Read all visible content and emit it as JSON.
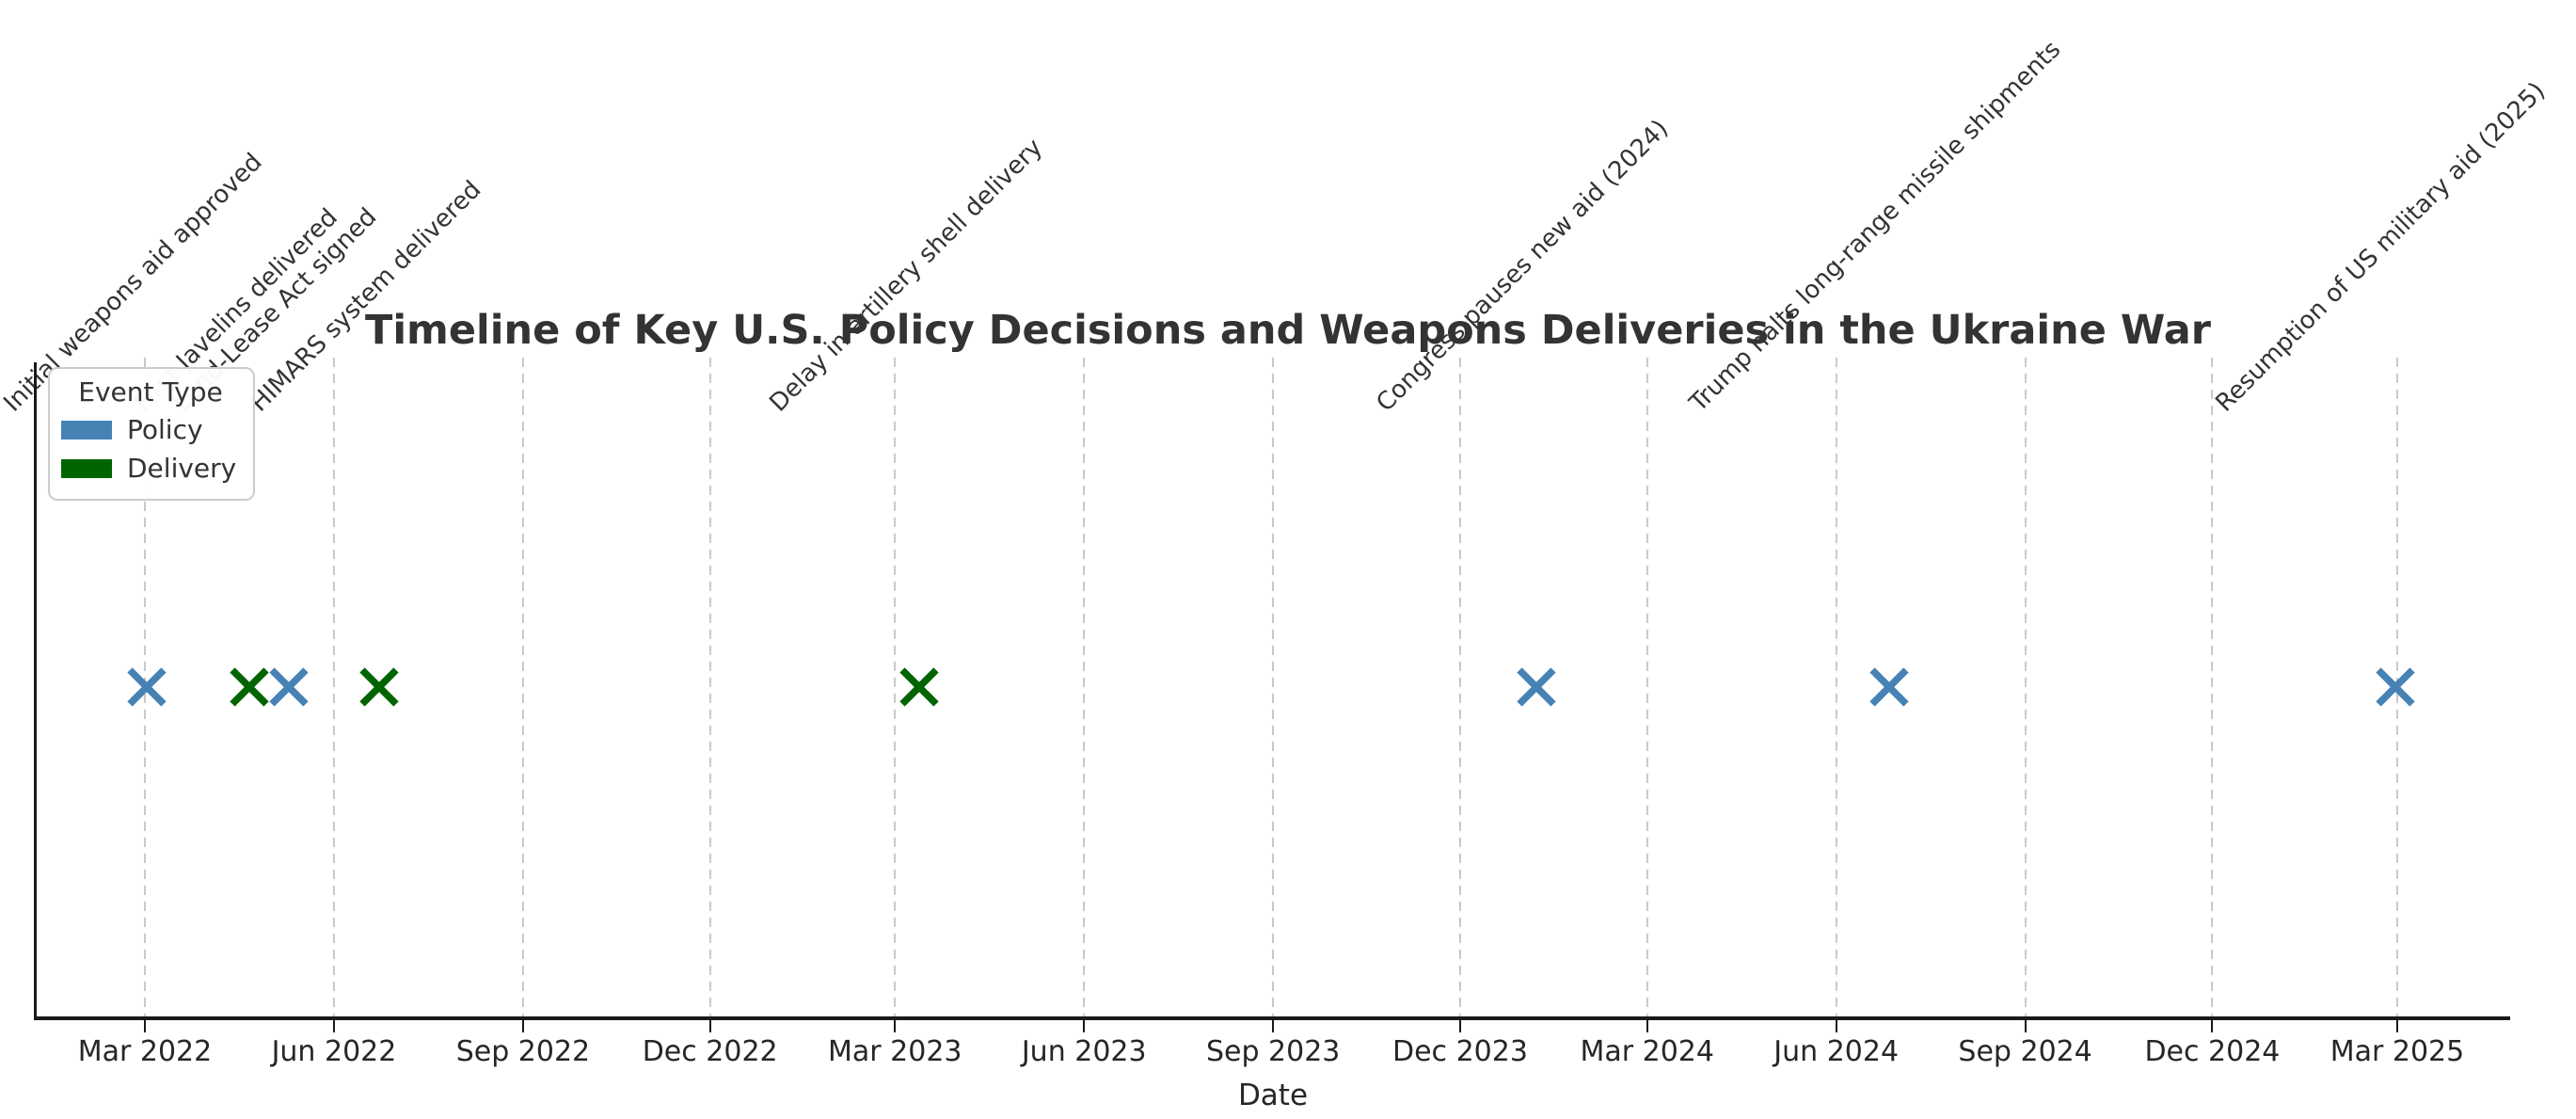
{
  "chart_data": {
    "type": "scatter",
    "title": "Timeline of Key U.S. Policy Decisions and Weapons Deliveries in the Ukraine War",
    "xlabel": "Date",
    "ylabel": "",
    "legend_title": "Event Type",
    "legend_position": "upper left",
    "grid": "vertical dashed quarterly gridlines",
    "marker": "x",
    "x_axis_range": [
      "2022-01-08",
      "2025-04-23"
    ],
    "x_ticks": [
      {
        "label": "Mar 2022",
        "date": "2022-03-01"
      },
      {
        "label": "Jun 2022",
        "date": "2022-06-01"
      },
      {
        "label": "Sep 2022",
        "date": "2022-09-01"
      },
      {
        "label": "Dec 2022",
        "date": "2022-12-01"
      },
      {
        "label": "Mar 2023",
        "date": "2023-03-01"
      },
      {
        "label": "Jun 2023",
        "date": "2023-06-01"
      },
      {
        "label": "Sep 2023",
        "date": "2023-09-01"
      },
      {
        "label": "Dec 2023",
        "date": "2023-12-01"
      },
      {
        "label": "Mar 2024",
        "date": "2024-03-01"
      },
      {
        "label": "Jun 2024",
        "date": "2024-06-01"
      },
      {
        "label": "Sep 2024",
        "date": "2024-09-01"
      },
      {
        "label": "Dec 2024",
        "date": "2024-12-01"
      },
      {
        "label": "Mar 2025",
        "date": "2025-03-01"
      }
    ],
    "series": [
      {
        "name": "Policy",
        "color": "#4682B4",
        "points": [
          {
            "date": "2022-03-02",
            "label": "Initial weapons aid approved"
          },
          {
            "date": "2022-05-10",
            "label": "Lend-Lease Act signed"
          },
          {
            "date": "2024-01-07",
            "label": "Congress pauses new aid (2024)"
          },
          {
            "date": "2024-06-27",
            "label": "Trump halts long-range missile shipments"
          },
          {
            "date": "2025-02-28",
            "label": "Resumption of US military aid (2025)"
          }
        ]
      },
      {
        "name": "Delivery",
        "color": "#006400",
        "points": [
          {
            "date": "2022-04-21",
            "label": "First Javelins delivered"
          },
          {
            "date": "2022-06-23",
            "label": "HIMARS system delivered"
          },
          {
            "date": "2023-03-13",
            "label": "Delay in artillery shell delivery"
          }
        ]
      }
    ]
  }
}
